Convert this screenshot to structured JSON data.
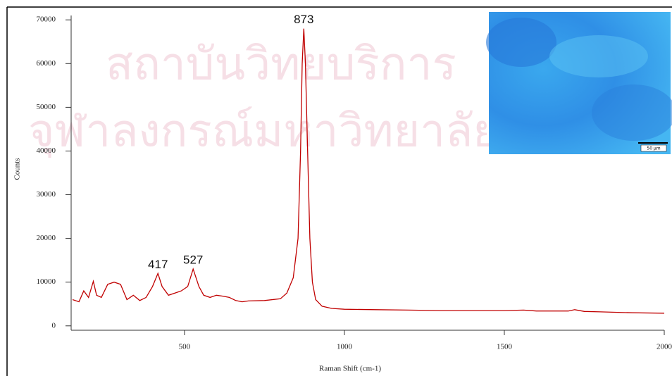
{
  "chart_data": {
    "type": "line",
    "xlabel": "Raman Shift (cm-1)",
    "ylabel": "Counts",
    "x": [
      150,
      170,
      185,
      200,
      215,
      225,
      240,
      260,
      280,
      300,
      320,
      340,
      360,
      380,
      400,
      417,
      430,
      450,
      470,
      490,
      510,
      527,
      545,
      560,
      580,
      600,
      620,
      640,
      660,
      680,
      700,
      750,
      800,
      820,
      840,
      855,
      863,
      868,
      873,
      878,
      885,
      892,
      900,
      910,
      930,
      960,
      1000,
      1100,
      1200,
      1300,
      1400,
      1500,
      1560,
      1600,
      1700,
      1720,
      1750,
      1800,
      1900,
      2000
    ],
    "values": [
      6000,
      5500,
      8000,
      6500,
      10200,
      7000,
      6500,
      9500,
      10000,
      9500,
      6000,
      7000,
      5800,
      6500,
      9000,
      12000,
      9000,
      7000,
      7500,
      8000,
      9000,
      13000,
      9000,
      7000,
      6500,
      7000,
      6800,
      6500,
      5800,
      5500,
      5700,
      5800,
      6200,
      7500,
      11000,
      20000,
      40000,
      60000,
      68000,
      60000,
      40000,
      20000,
      10000,
      6000,
      4500,
      4000,
      3800,
      3700,
      3600,
      3500,
      3500,
      3500,
      3600,
      3400,
      3400,
      3700,
      3300,
      3200,
      3000,
      2900
    ],
    "color": "#c00000",
    "peak_labels": [
      417,
      527,
      873
    ],
    "xlim": [
      150,
      2000
    ],
    "xticks": [
      500,
      1000,
      1500,
      2000
    ],
    "ylim": [
      -1000,
      71000
    ],
    "yticks": [
      0,
      10000,
      20000,
      30000,
      40000,
      50000,
      60000,
      70000
    ],
    "watermark": [
      "สถาบันวิทยบริการ",
      "จุฬาลงกรณ์มหาวิทยาลัย"
    ],
    "inset_scale_label": "50 µm"
  }
}
